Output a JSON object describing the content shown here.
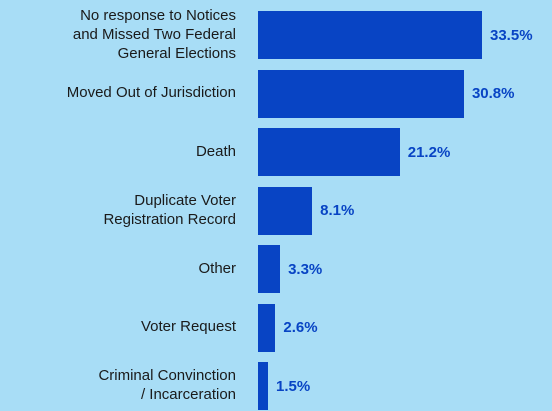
{
  "chart_data": {
    "type": "bar",
    "orientation": "horizontal",
    "categories": [
      "No response to Notices and Missed Two Federal General Elections",
      "Moved Out of Jurisdiction",
      "Death",
      "Duplicate Voter Registration Record",
      "Other",
      "Voter Request",
      "Criminal Convinction / Incarceration"
    ],
    "category_lines": [
      [
        "No response to Notices",
        "and Missed Two Federal",
        "General Elections"
      ],
      [
        "Moved Out of Jurisdiction"
      ],
      [
        "Death"
      ],
      [
        "Duplicate Voter",
        "Registration Record"
      ],
      [
        "Other"
      ],
      [
        "Voter Request"
      ],
      [
        "Criminal Convinction",
        "/ Incarceration"
      ]
    ],
    "values": [
      33.5,
      30.8,
      21.2,
      8.1,
      3.3,
      2.6,
      1.5
    ],
    "value_labels": [
      "33.5%",
      "30.8%",
      "21.2%",
      "8.1%",
      "3.3%",
      "2.6%",
      "1.5%"
    ],
    "unit": "%",
    "title": "",
    "xlabel": "",
    "ylabel": "",
    "xlim": [
      0,
      33.5
    ],
    "grid": false,
    "legend": "none",
    "colors": {
      "background": "#A8DDF6",
      "bar": "#0844C4",
      "value_label": "#0844C4",
      "category_label": "#1a1a1a"
    }
  }
}
